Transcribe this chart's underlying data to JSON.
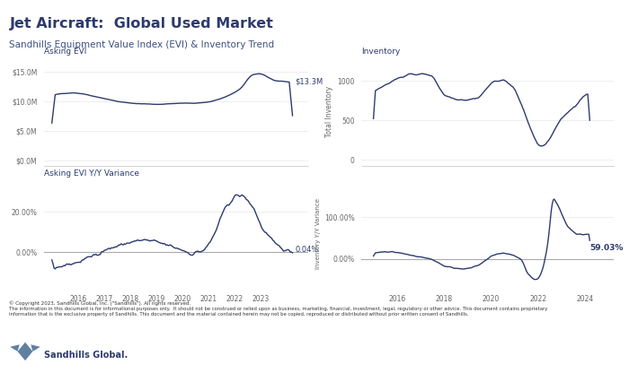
{
  "title": "Jet Aircraft:  Global Used Market",
  "subtitle": "Sandhills Equipment Value Index (EVI) & Inventory Trend",
  "title_color": "#2d3b6e",
  "subtitle_color": "#3d5080",
  "background_color": "#ffffff",
  "header_bar_color": "#5b7fa6",
  "line_color": "#2d3b6e",
  "zero_line_color": "#aaaaaa",
  "grid_color": "#e8e8e8",
  "copyright_text": "© Copyright 2023, Sandhills Global, Inc. (\"Sandhills\"). All rights reserved.",
  "disclaimer_line1": "The information in this document is for informational purposes only.  It should not be construed or relied upon as business, marketing, financial, investment, legal, regulatory or other advice. This document contains proprietary",
  "disclaimer_line2": "information that is the exclusive property of Sandhills. This document and the material contained herein may not be copied, reproduced or distributed without prior written consent of Sandhills.",
  "evi_label": "Asking EVI",
  "evi_yy_label": "Asking EVI Y/Y Variance",
  "inv_label": "Inventory",
  "inv_ylabel": "Total Inventory",
  "inv_yy_ylabel": "Inventory Y/Y Variance",
  "evi_yticks": [
    0,
    5000000,
    10000000,
    15000000
  ],
  "evi_yticklabels": [
    "$0.0M",
    "$5.0M",
    "$10.0M",
    "$15.0M"
  ],
  "evi_ylim": [
    -1000000,
    17500000
  ],
  "evi_yy_yticks": [
    0.0,
    0.2
  ],
  "evi_yy_yticklabels": [
    "0.00%",
    "20.00%"
  ],
  "evi_yy_ylim": [
    -0.18,
    0.36
  ],
  "inv_yticks": [
    0,
    500,
    1000
  ],
  "inv_yticklabels": [
    "0",
    "500",
    "1000"
  ],
  "inv_ylim": [
    -80,
    1300
  ],
  "inv_yy_yticks": [
    0.0,
    1.0
  ],
  "inv_yy_yticklabels": [
    "0.00%",
    "100.00%"
  ],
  "inv_yy_ylim": [
    -0.7,
    1.9
  ],
  "evi_annotation": "$13.3M",
  "evi_yy_annotation": "0.04%",
  "inv_yy_annotation": "59.03%",
  "xticks_left": [
    2016,
    2017,
    2018,
    2019,
    2020,
    2021,
    2022,
    2023
  ],
  "xticks_right": [
    2016,
    2018,
    2020,
    2022,
    2024
  ],
  "xlim_left": [
    2014.7,
    2024.8
  ],
  "xlim_right": [
    2014.5,
    2025.2
  ],
  "footer_color": "#d0dce8",
  "sandhills_text": "Sandhills Global."
}
